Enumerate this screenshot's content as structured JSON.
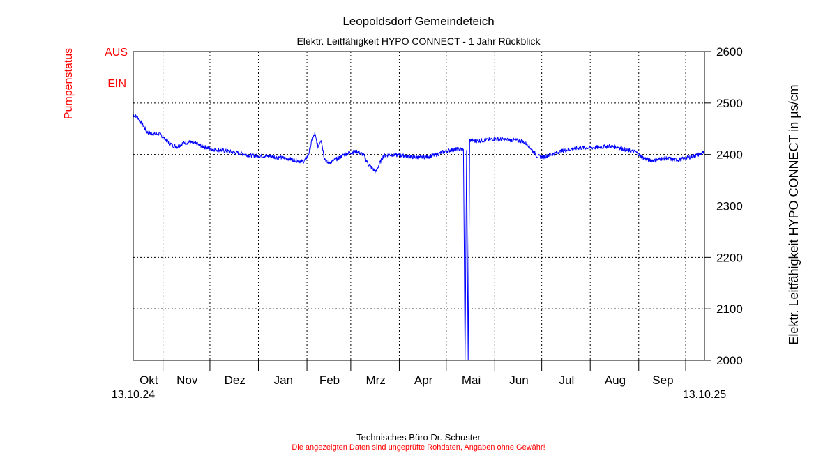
{
  "chart_data": {
    "type": "line",
    "title": "Leopoldsdorf Gemeindeteich",
    "subtitle": "Elektr. Leitfähigkeit HYPO CONNECT - 1 Jahr Rückblick",
    "ylabel_right": "Elektr. Leitfähigkeit HYPO CONNECT in µs/cm",
    "ylabel_left": "Pumpenstatus",
    "pump_levels": [
      "AUS",
      "EIN"
    ],
    "ylim": [
      2000,
      2600
    ],
    "yticks": [
      2000,
      2100,
      2200,
      2300,
      2400,
      2500,
      2600
    ],
    "xlim": [
      "2024-10-13",
      "2025-10-13"
    ],
    "x_start_label": "13.10.24",
    "x_end_label": "13.10.25",
    "months": [
      {
        "label": "Okt",
        "start": "2024-10-01",
        "end": "2024-11-01"
      },
      {
        "label": "Nov",
        "start": "2024-11-01",
        "end": "2024-12-01"
      },
      {
        "label": "Dez",
        "start": "2024-12-01",
        "end": "2025-01-01"
      },
      {
        "label": "Jan",
        "start": "2025-01-01",
        "end": "2025-02-01"
      },
      {
        "label": "Feb",
        "start": "2025-02-01",
        "end": "2025-03-01"
      },
      {
        "label": "Mrz",
        "start": "2025-03-01",
        "end": "2025-04-01"
      },
      {
        "label": "Apr",
        "start": "2025-04-01",
        "end": "2025-05-01"
      },
      {
        "label": "Mai",
        "start": "2025-05-01",
        "end": "2025-06-01"
      },
      {
        "label": "Jun",
        "start": "2025-06-01",
        "end": "2025-07-01"
      },
      {
        "label": "Jul",
        "start": "2025-07-01",
        "end": "2025-08-01"
      },
      {
        "label": "Aug",
        "start": "2025-08-01",
        "end": "2025-09-01"
      },
      {
        "label": "Sep",
        "start": "2025-09-01",
        "end": "2025-10-01"
      }
    ],
    "grid": true,
    "series": [
      {
        "color": "#0000ff",
        "points": [
          [
            "2024-10-13",
            2477
          ],
          [
            "2024-10-16",
            2472
          ],
          [
            "2024-10-19",
            2458
          ],
          [
            "2024-10-22",
            2443
          ],
          [
            "2024-10-26",
            2440
          ],
          [
            "2024-10-30",
            2440
          ],
          [
            "2024-11-03",
            2428
          ],
          [
            "2024-11-07",
            2418
          ],
          [
            "2024-11-10",
            2415
          ],
          [
            "2024-11-14",
            2422
          ],
          [
            "2024-11-18",
            2424
          ],
          [
            "2024-11-23",
            2420
          ],
          [
            "2024-11-28",
            2414
          ],
          [
            "2024-12-03",
            2410
          ],
          [
            "2024-12-09",
            2408
          ],
          [
            "2024-12-15",
            2405
          ],
          [
            "2024-12-21",
            2402
          ],
          [
            "2024-12-27",
            2398
          ],
          [
            "2025-01-02",
            2397
          ],
          [
            "2025-01-08",
            2397
          ],
          [
            "2025-01-14",
            2394
          ],
          [
            "2025-01-20",
            2392
          ],
          [
            "2025-01-26",
            2388
          ],
          [
            "2025-01-30",
            2386
          ],
          [
            "2025-02-02",
            2400
          ],
          [
            "2025-02-04",
            2425
          ],
          [
            "2025-02-06",
            2440
          ],
          [
            "2025-02-08",
            2415
          ],
          [
            "2025-02-10",
            2430
          ],
          [
            "2025-02-12",
            2395
          ],
          [
            "2025-02-14",
            2384
          ],
          [
            "2025-02-17",
            2386
          ],
          [
            "2025-02-21",
            2393
          ],
          [
            "2025-02-25",
            2400
          ],
          [
            "2025-03-01",
            2404
          ],
          [
            "2025-03-05",
            2406
          ],
          [
            "2025-03-09",
            2400
          ],
          [
            "2025-03-12",
            2382
          ],
          [
            "2025-03-15",
            2372
          ],
          [
            "2025-03-17",
            2366
          ],
          [
            "2025-03-19",
            2380
          ],
          [
            "2025-03-22",
            2398
          ],
          [
            "2025-03-27",
            2400
          ],
          [
            "2025-04-02",
            2398
          ],
          [
            "2025-04-08",
            2396
          ],
          [
            "2025-04-14",
            2394
          ],
          [
            "2025-04-20",
            2396
          ],
          [
            "2025-04-25",
            2400
          ],
          [
            "2025-04-29",
            2405
          ],
          [
            "2025-05-03",
            2408
          ],
          [
            "2025-05-07",
            2410
          ],
          [
            "2025-05-12",
            2410
          ],
          [
            "2025-05-13",
            2000
          ],
          [
            "2025-05-14",
            2408
          ],
          [
            "2025-05-15",
            2000
          ],
          [
            "2025-05-16",
            2428
          ],
          [
            "2025-05-20",
            2426
          ],
          [
            "2025-05-26",
            2428
          ],
          [
            "2025-06-01",
            2430
          ],
          [
            "2025-06-07",
            2429
          ],
          [
            "2025-06-13",
            2428
          ],
          [
            "2025-06-18",
            2426
          ],
          [
            "2025-06-22",
            2420
          ],
          [
            "2025-06-25",
            2408
          ],
          [
            "2025-06-28",
            2397
          ],
          [
            "2025-07-02",
            2395
          ],
          [
            "2025-07-07",
            2400
          ],
          [
            "2025-07-13",
            2406
          ],
          [
            "2025-07-19",
            2410
          ],
          [
            "2025-07-25",
            2413
          ],
          [
            "2025-08-01",
            2413
          ],
          [
            "2025-08-07",
            2414
          ],
          [
            "2025-08-13",
            2416
          ],
          [
            "2025-08-19",
            2414
          ],
          [
            "2025-08-25",
            2408
          ],
          [
            "2025-08-30",
            2405
          ],
          [
            "2025-09-03",
            2395
          ],
          [
            "2025-09-07",
            2390
          ],
          [
            "2025-09-11",
            2388
          ],
          [
            "2025-09-15",
            2392
          ],
          [
            "2025-09-19",
            2393
          ],
          [
            "2025-09-23",
            2390
          ],
          [
            "2025-09-27",
            2390
          ],
          [
            "2025-10-01",
            2393
          ],
          [
            "2025-10-05",
            2396
          ],
          [
            "2025-10-09",
            2400
          ],
          [
            "2025-10-13",
            2404
          ]
        ]
      }
    ]
  },
  "footer": {
    "company": "Technisches Büro Dr. Schuster",
    "disclaimer": "Die angezeigten Daten sind ungeprüfte Rohdaten, Angaben ohne Gewähr!"
  }
}
